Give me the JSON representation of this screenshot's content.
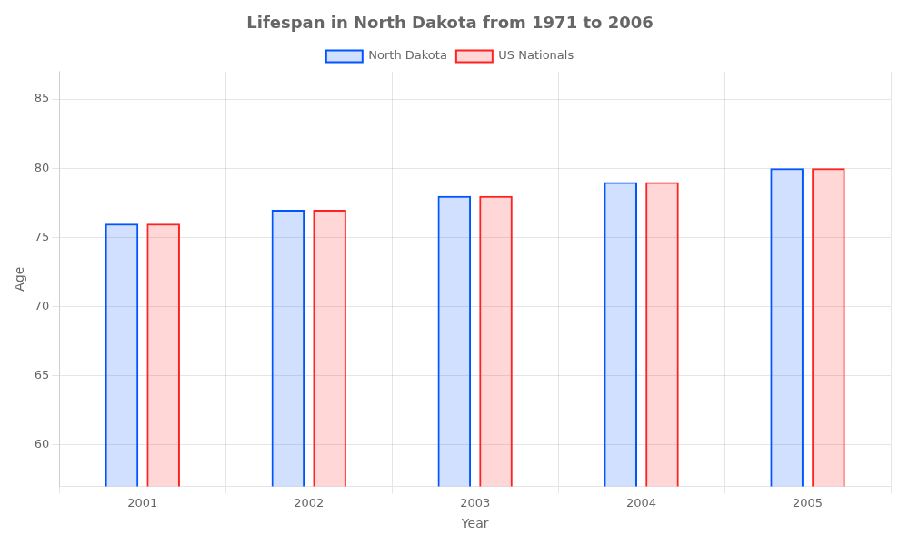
{
  "chart_data": {
    "type": "bar",
    "title": "Lifespan in North Dakota from 1971 to 2006",
    "x_label": "Year",
    "y_label": "Age",
    "categories": [
      "2001",
      "2002",
      "2003",
      "2004",
      "2005"
    ],
    "series": [
      {
        "name": "North Dakota",
        "color": "#0055ff",
        "values": [
          76.0,
          77.0,
          78.0,
          79.0,
          80.0
        ]
      },
      {
        "name": "US Nationals",
        "color": "#ff2222",
        "values": [
          76.0,
          77.0,
          78.0,
          79.0,
          80.0
        ]
      }
    ],
    "ylim": [
      57,
      87
    ],
    "yticks": [
      60,
      65,
      70,
      75,
      80,
      85
    ],
    "grid": true,
    "legend": "top"
  }
}
